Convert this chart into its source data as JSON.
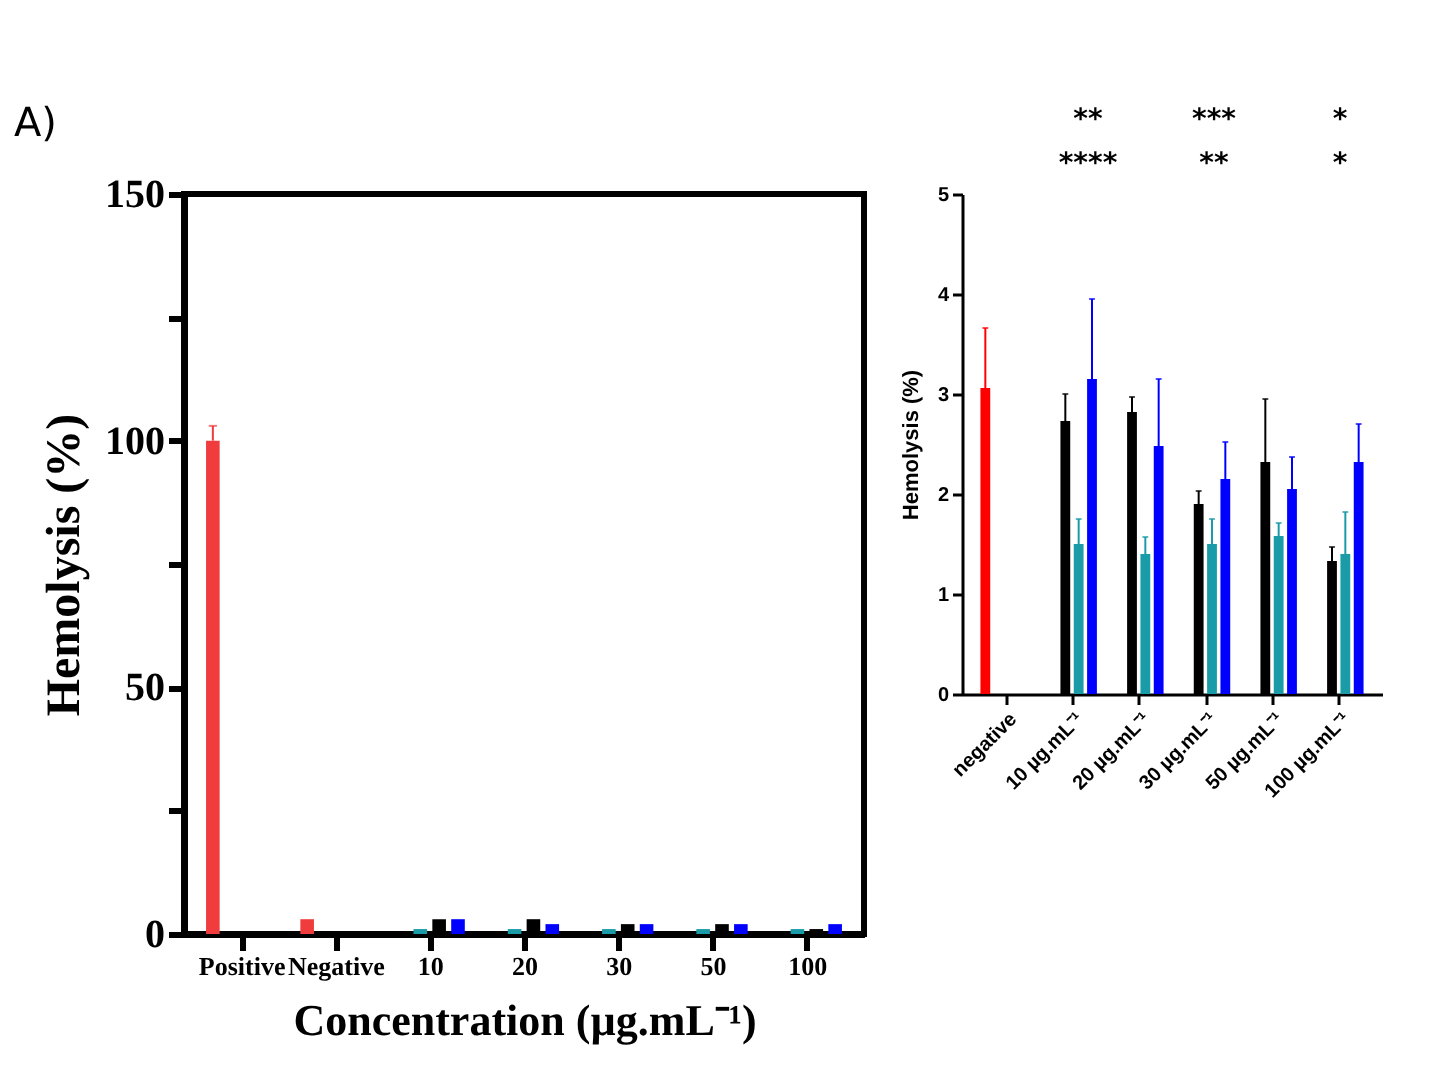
{
  "chart_data": [
    {
      "type": "bar",
      "xlabel": "Concentration (µg.mL⁻¹)",
      "ylabel": "Hemolysis (%)",
      "categories": [
        "Positive",
        "Negative",
        "10",
        "20",
        "30",
        "50",
        "100"
      ],
      "series": [
        {
          "color": "#f03c3c",
          "values": [
            100,
            3,
            null,
            null,
            null,
            null,
            null
          ],
          "errors": [
            [
              100,
              103
            ],
            null,
            null,
            null,
            null,
            null,
            null
          ]
        },
        {
          "color": "#1a9ba8",
          "values": [
            null,
            null,
            1,
            1,
            1,
            1,
            1
          ]
        },
        {
          "color": "#000000",
          "values": [
            null,
            null,
            3,
            3,
            2,
            2,
            1
          ]
        },
        {
          "color": "#0000ff",
          "values": [
            null,
            null,
            3,
            2,
            2,
            2,
            2
          ]
        }
      ],
      "ylim": [
        0,
        150
      ],
      "yticks": [
        0,
        {
          "value": 25,
          "label": null
        },
        50,
        {
          "value": 75,
          "label": null
        },
        100,
        {
          "value": 125,
          "label": null
        },
        150
      ],
      "grid": false,
      "legend": false,
      "annotations": [
        "A)"
      ]
    },
    {
      "type": "bar",
      "ylabel": "Hemolysis (%)",
      "categories": [
        "negative",
        "10 µg.mL⁻¹",
        "20 µg.mL⁻¹",
        "30 µg.mL⁻¹",
        "50 µg.mL⁻¹",
        "100 µg.mL⁻¹"
      ],
      "series": [
        {
          "color": "#ff0000",
          "values": [
            3.06,
            null,
            null,
            null,
            null,
            null
          ],
          "errors": [
            [
              3.06,
              3.66
            ],
            null,
            null,
            null,
            null,
            null
          ]
        },
        {
          "color": "#000000",
          "values": [
            null,
            2.73,
            2.82,
            1.9,
            2.32,
            1.33
          ],
          "errors": [
            null,
            [
              2.73,
              3.0
            ],
            [
              2.82,
              2.97
            ],
            [
              1.9,
              2.03
            ],
            [
              2.32,
              2.95
            ],
            [
              1.33,
              1.47
            ]
          ]
        },
        {
          "color": "#1a9ba8",
          "values": [
            null,
            1.5,
            1.4,
            1.5,
            1.58,
            1.4
          ],
          "errors": [
            null,
            [
              1.5,
              1.75
            ],
            [
              1.4,
              1.57
            ],
            [
              1.5,
              1.75
            ],
            [
              1.58,
              1.71
            ],
            [
              1.4,
              1.82
            ]
          ]
        },
        {
          "color": "#0000ff",
          "values": [
            null,
            3.15,
            2.48,
            2.15,
            2.05,
            2.32
          ],
          "errors": [
            null,
            [
              3.15,
              3.95
            ],
            [
              2.48,
              3.15
            ],
            [
              2.15,
              2.52
            ],
            [
              2.05,
              2.37
            ],
            [
              2.32,
              2.7
            ]
          ]
        }
      ],
      "ylim": [
        0,
        5
      ],
      "yticks": [
        0,
        1,
        2,
        3,
        4,
        5
      ],
      "grid": false,
      "legend": false,
      "annotations": [
        "**",
        "***",
        "*",
        "****",
        "**",
        "*"
      ]
    }
  ]
}
